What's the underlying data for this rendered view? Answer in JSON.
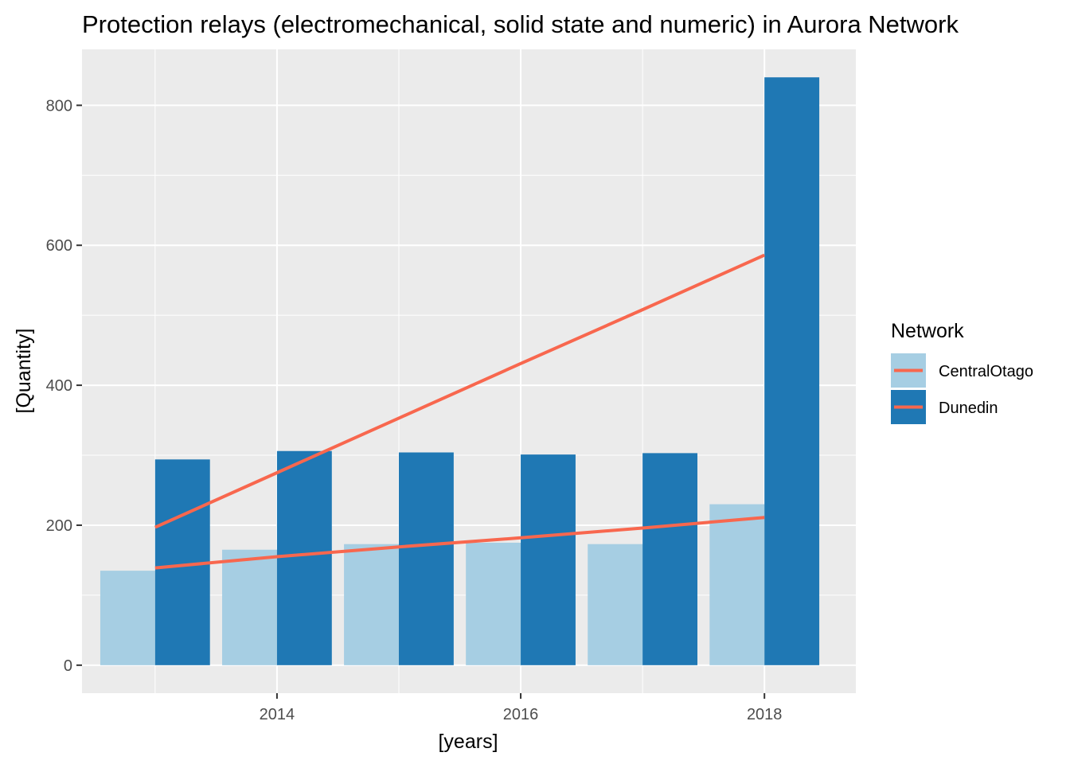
{
  "chart_data": {
    "type": "bar",
    "title": "Protection relays (electromechanical, solid state and numeric) in Aurora Network",
    "xlabel": "[years]",
    "ylabel": "[Quantity]",
    "x": [
      2013,
      2014,
      2015,
      2016,
      2017,
      2018
    ],
    "x_ticks": [
      "2014",
      "2016",
      "2018"
    ],
    "y_ticks": [
      "0",
      "200",
      "400",
      "600",
      "800"
    ],
    "xlim": [
      2012.4,
      2018.75
    ],
    "ylim": [
      -40,
      880
    ],
    "grid": true,
    "legend": {
      "title": "Network",
      "placement": "right"
    },
    "series": [
      {
        "name": "CentralOtago",
        "color": "#a6cee3",
        "values": [
          135,
          165,
          173,
          175,
          173,
          230
        ],
        "trend": [
          139,
          155,
          169,
          182,
          196,
          211
        ]
      },
      {
        "name": "Dunedin",
        "color": "#1f78b4",
        "values": [
          294,
          306,
          304,
          301,
          303,
          840
        ],
        "trend": [
          197,
          275,
          353,
          431,
          508,
          586
        ]
      }
    ],
    "trend_color": "#f8674e"
  }
}
